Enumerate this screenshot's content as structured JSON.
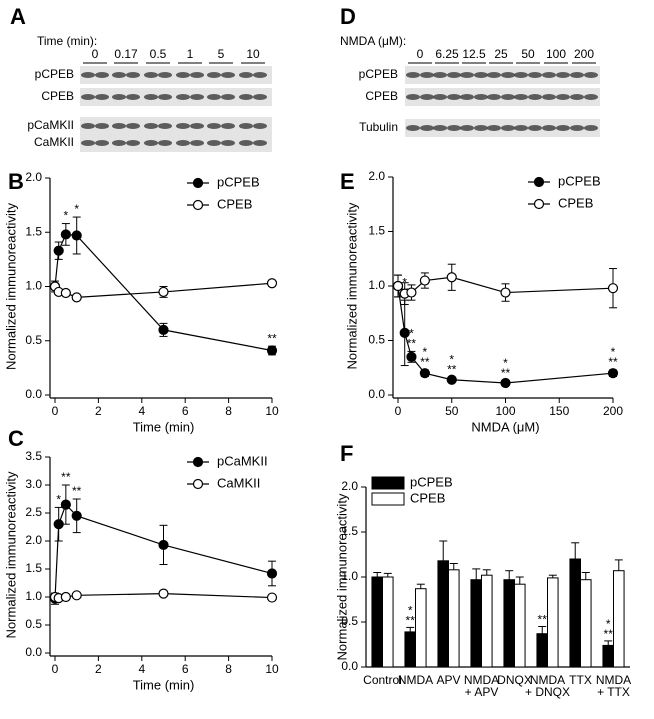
{
  "blots": [
    {
      "panel_label": "A",
      "title": "Time (min):",
      "lanes": [
        "0",
        "0.17",
        "0.5",
        "1",
        "5",
        "10"
      ],
      "bands": [
        "pCPEB",
        "CPEB",
        "pCaMKII",
        "CaMKII"
      ]
    },
    {
      "panel_label": "D",
      "title": "NMDA (μM):",
      "lanes": [
        "0",
        "6.25",
        "12.5",
        "25",
        "50",
        "100",
        "200"
      ],
      "bands": [
        "pCPEB",
        "CPEB",
        "Tubulin"
      ]
    }
  ],
  "chart_data": [
    {
      "panel_label": "B",
      "type": "line",
      "xlabel": "Time (min)",
      "ylabel": "Normalized immunoreactivity",
      "x": [
        0,
        0.17,
        0.5,
        1,
        5,
        10
      ],
      "xlim": [
        0,
        10
      ],
      "xticks": [
        0,
        2,
        4,
        6,
        8,
        10
      ],
      "ylim": [
        0,
        2
      ],
      "yticks": [
        {
          "value": 0,
          "label": "0.0"
        },
        0.5,
        {
          "value": 1,
          "label": "1.0"
        },
        1.5,
        {
          "value": 2,
          "label": "2.0"
        }
      ],
      "legend": "upper right",
      "series": [
        {
          "name": "pCPEB",
          "color": "#000000",
          "marker_fill": "#000000",
          "values": [
            1.0,
            1.33,
            1.48,
            1.47,
            0.6,
            0.41
          ],
          "errors": [
            0.05,
            0.08,
            0.1,
            0.17,
            0.06,
            0.04
          ],
          "significance": [
            null,
            null,
            "*",
            "*",
            null,
            "**"
          ]
        },
        {
          "name": "CPEB",
          "color": "#000000",
          "marker_fill": "#ffffff",
          "values": [
            1.0,
            0.95,
            0.94,
            0.9,
            0.95,
            1.03
          ],
          "errors": [
            0.03,
            0.02,
            0.02,
            0.02,
            0.05,
            0.02
          ]
        }
      ]
    },
    {
      "panel_label": "C",
      "type": "line",
      "xlabel": "Time (min)",
      "ylabel": "Normalized immunoreactivity",
      "x": [
        0,
        0.17,
        0.5,
        1,
        5,
        10
      ],
      "xlim": [
        0,
        10
      ],
      "xticks": [
        0,
        2,
        4,
        6,
        8,
        10
      ],
      "ylim": [
        0,
        3.5
      ],
      "yticks": [
        {
          "value": 0,
          "label": "0.0"
        },
        0.5,
        {
          "value": 1,
          "label": "1.0"
        },
        1.5,
        {
          "value": 2,
          "label": "2.0"
        },
        2.5,
        {
          "value": 3,
          "label": "3.0"
        },
        3.5
      ],
      "legend": "upper right",
      "series": [
        {
          "name": "pCaMKII",
          "color": "#000000",
          "marker_fill": "#000000",
          "values": [
            0.97,
            2.3,
            2.65,
            2.45,
            1.93,
            1.42
          ],
          "errors": [
            0.1,
            0.3,
            0.35,
            0.3,
            0.35,
            0.22
          ],
          "significance": [
            null,
            "*",
            "**",
            "**",
            null,
            null
          ]
        },
        {
          "name": "CaMKII",
          "color": "#000000",
          "marker_fill": "#ffffff",
          "values": [
            1.0,
            0.98,
            1.0,
            1.03,
            1.06,
            0.99
          ],
          "errors": [
            0.04,
            0.03,
            0.03,
            0.03,
            0.03,
            0.03
          ]
        }
      ]
    },
    {
      "panel_label": "E",
      "type": "line",
      "xlabel": "NMDA (μM)",
      "ylabel": "Normalized immunoreactivity",
      "x": [
        0,
        6.25,
        12.5,
        25,
        50,
        100,
        200
      ],
      "xlim": [
        0,
        200
      ],
      "xticks": [
        0,
        50,
        100,
        150,
        200
      ],
      "ylim": [
        0,
        2
      ],
      "yticks": [
        {
          "value": 0,
          "label": "0.0"
        },
        0.5,
        {
          "value": 1,
          "label": "1.0"
        },
        1.5,
        {
          "value": 2,
          "label": "2.0"
        }
      ],
      "legend": "upper right",
      "series": [
        {
          "name": "pCPEB",
          "color": "#000000",
          "marker_fill": "#000000",
          "values": [
            1.0,
            0.57,
            0.35,
            0.2,
            0.14,
            0.11,
            0.2
          ],
          "errors": [
            0.1,
            0.3,
            0.05,
            0.03,
            0.02,
            0.02,
            0.03
          ],
          "significance": [
            null,
            [
              "*",
              "**"
            ],
            [
              "*",
              "**"
            ],
            [
              "*",
              "**"
            ],
            [
              "*",
              "**"
            ],
            [
              "*",
              "**"
            ],
            [
              "*",
              "**"
            ]
          ]
        },
        {
          "name": "CPEB",
          "color": "#000000",
          "marker_fill": "#ffffff",
          "values": [
            1.0,
            0.93,
            0.94,
            1.05,
            1.08,
            0.94,
            0.98
          ],
          "errors": [
            0.1,
            0.1,
            0.07,
            0.07,
            0.12,
            0.08,
            0.18
          ]
        }
      ]
    },
    {
      "panel_label": "F",
      "type": "bar",
      "ylabel": "Normalized immunoreactivity",
      "categories": [
        [
          "Control"
        ],
        [
          "NMDA"
        ],
        [
          "APV"
        ],
        [
          "NMDA",
          "+ APV"
        ],
        [
          "DNQX"
        ],
        [
          "NMDA",
          "+ DNQX"
        ],
        [
          "TTX"
        ],
        [
          "NMDA",
          "+ TTX"
        ]
      ],
      "ylim": [
        0,
        2
      ],
      "yticks": [
        {
          "value": 0,
          "label": "0.0"
        },
        0.5,
        {
          "value": 1,
          "label": "1.0"
        },
        1.5,
        {
          "value": 2,
          "label": "2.0"
        }
      ],
      "legend": "upper left",
      "series": [
        {
          "name": "pCPEB",
          "color": "#000000",
          "marker_fill": "#000000",
          "values": [
            1.0,
            0.39,
            1.18,
            0.97,
            0.97,
            0.37,
            1.2,
            0.24
          ],
          "errors": [
            0.05,
            0.05,
            0.22,
            0.12,
            0.1,
            0.08,
            0.18,
            0.05
          ],
          "significance": [
            null,
            [
              "*",
              "**"
            ],
            null,
            null,
            null,
            [
              "**"
            ],
            null,
            [
              "*",
              "**"
            ]
          ]
        },
        {
          "name": "CPEB",
          "color": "#000000",
          "marker_fill": "#ffffff",
          "values": [
            1.0,
            0.87,
            1.08,
            1.02,
            0.92,
            0.99,
            0.97,
            1.07
          ],
          "errors": [
            0.04,
            0.05,
            0.07,
            0.06,
            0.08,
            0.03,
            0.08,
            0.12
          ]
        }
      ]
    }
  ]
}
